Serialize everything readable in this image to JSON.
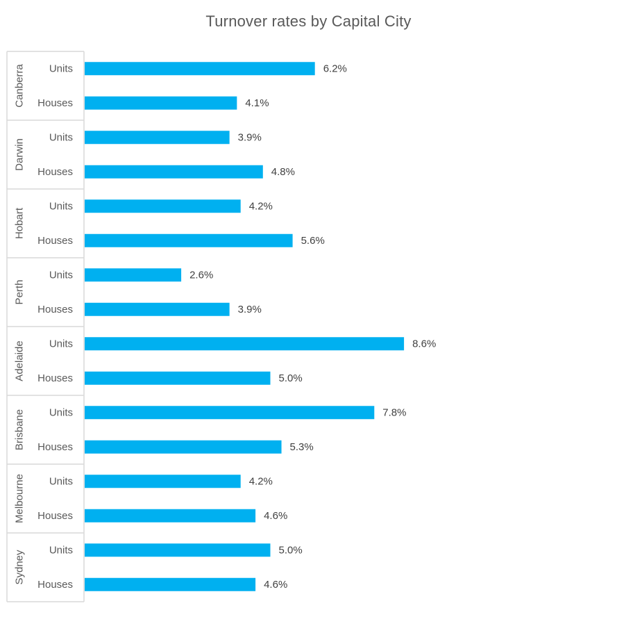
{
  "chart_data": {
    "type": "bar",
    "orientation": "horizontal",
    "title": "Turnover rates by Capital City",
    "xlabel": "",
    "ylabel": "",
    "value_format": "percent",
    "xlim": [
      0,
      9.0
    ],
    "grid": false,
    "legend": "none",
    "bar_color": "#00B0F0",
    "groups": [
      {
        "city": "Canberra",
        "items": [
          {
            "type": "Units",
            "value": 6.2,
            "label": "6.2%"
          },
          {
            "type": "Houses",
            "value": 4.1,
            "label": "4.1%"
          }
        ]
      },
      {
        "city": "Darwin",
        "items": [
          {
            "type": "Units",
            "value": 3.9,
            "label": "3.9%"
          },
          {
            "type": "Houses",
            "value": 4.8,
            "label": "4.8%"
          }
        ]
      },
      {
        "city": "Hobart",
        "items": [
          {
            "type": "Units",
            "value": 4.2,
            "label": "4.2%"
          },
          {
            "type": "Houses",
            "value": 5.6,
            "label": "5.6%"
          }
        ]
      },
      {
        "city": "Perth",
        "items": [
          {
            "type": "Units",
            "value": 2.6,
            "label": "2.6%"
          },
          {
            "type": "Houses",
            "value": 3.9,
            "label": "3.9%"
          }
        ]
      },
      {
        "city": "Adelaide",
        "items": [
          {
            "type": "Units",
            "value": 8.6,
            "label": "8.6%"
          },
          {
            "type": "Houses",
            "value": 5.0,
            "label": "5.0%"
          }
        ]
      },
      {
        "city": "Brisbane",
        "items": [
          {
            "type": "Units",
            "value": 7.8,
            "label": "7.8%"
          },
          {
            "type": "Houses",
            "value": 5.3,
            "label": "5.3%"
          }
        ]
      },
      {
        "city": "Melbourne",
        "items": [
          {
            "type": "Units",
            "value": 4.2,
            "label": "4.2%"
          },
          {
            "type": "Houses",
            "value": 4.6,
            "label": "4.6%"
          }
        ]
      },
      {
        "city": "Sydney",
        "items": [
          {
            "type": "Units",
            "value": 5.0,
            "label": "5.0%"
          },
          {
            "type": "Houses",
            "value": 4.6,
            "label": "4.6%"
          }
        ]
      }
    ]
  }
}
